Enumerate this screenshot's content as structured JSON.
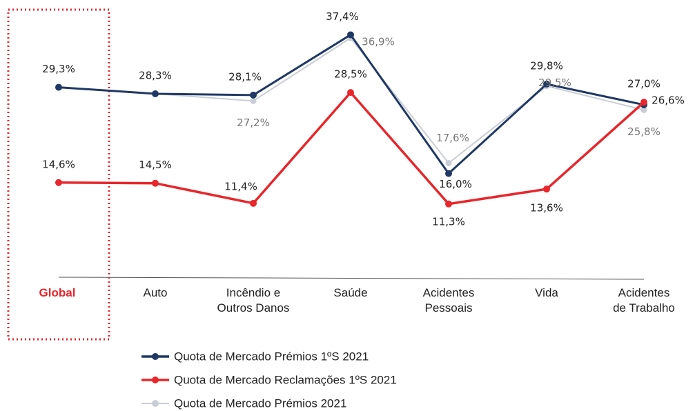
{
  "chart_data": {
    "type": "line",
    "categories": [
      "Global",
      "Auto",
      "Incêndio e\nOutros Danos",
      "Saúde",
      "Acidentes\nPessoais",
      "Vida",
      "Acidentes\nde Trabalho"
    ],
    "ylim": [
      0,
      40
    ],
    "series": [
      {
        "name": "Quota de Mercado Prémios 1ºS 2021",
        "color": "#1f3864",
        "values": [
          29.3,
          28.3,
          28.1,
          37.4,
          16.0,
          29.8,
          26.6
        ],
        "value_labels": [
          "29,3%",
          "28,3%",
          "28,1%",
          "37,4%",
          "16,0%",
          "29,8%",
          "26,6%"
        ]
      },
      {
        "name": "Quota de Mercado Reclamações 1ºS 2021",
        "color": "#e8262b",
        "values": [
          14.6,
          14.5,
          11.4,
          28.5,
          11.3,
          13.6,
          27.0
        ],
        "value_labels": [
          "14,6%",
          "14,5%",
          "11,4%",
          "28,5%",
          "11,3%",
          "13,6%",
          "27,0%"
        ]
      },
      {
        "name": "Quota de Mercado Prémios 2021",
        "color": "#c9cdd6",
        "values": [
          29.3,
          28.3,
          27.2,
          36.9,
          17.6,
          29.5,
          25.8
        ],
        "value_labels": [
          null,
          null,
          "27,2%",
          "36,9%",
          "17,6%",
          "29,5%",
          "25,8%"
        ]
      }
    ]
  }
}
